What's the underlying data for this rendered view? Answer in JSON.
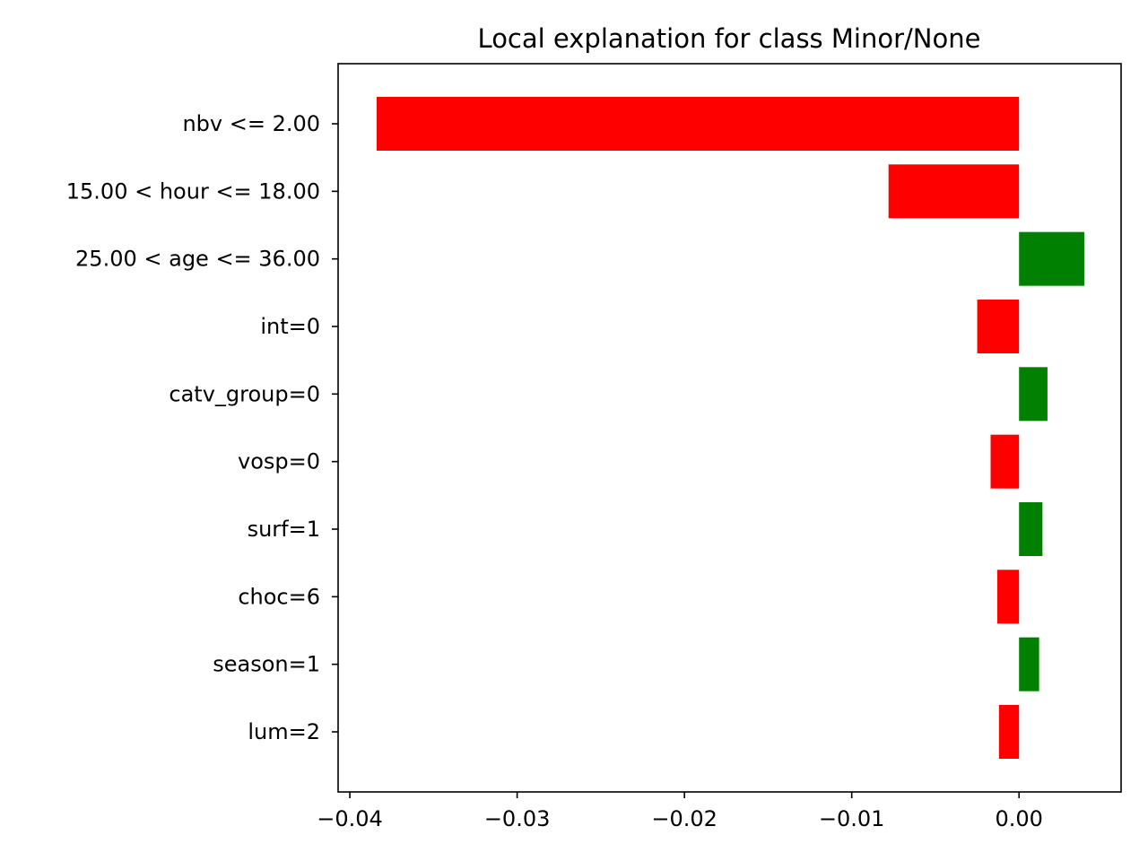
{
  "chart_data": {
    "type": "bar",
    "orientation": "horizontal",
    "title": "Local explanation for class Minor/None",
    "xlabel": "",
    "ylabel": "",
    "categories": [
      "nbv <= 2.00",
      "15.00 < hour <= 18.00",
      "25.00 < age <= 36.00",
      "int=0",
      "catv_group=0",
      "vosp=0",
      "surf=1",
      "choc=6",
      "season=1",
      "lum=2"
    ],
    "values": [
      -0.0384,
      -0.0078,
      0.0039,
      -0.0025,
      0.0017,
      -0.0017,
      0.0014,
      -0.0013,
      0.0012,
      -0.0012
    ],
    "xlim": [
      -0.0407,
      0.0061
    ],
    "xticks": [
      -0.04,
      -0.03,
      -0.02,
      -0.01,
      0.0
    ],
    "xtick_labels": [
      "−0.04",
      "−0.03",
      "−0.02",
      "−0.01",
      "0.00"
    ],
    "grid": false,
    "legend": "none",
    "colors": {
      "positive": "#008000",
      "negative": "#ff0000",
      "axis": "#000000"
    }
  }
}
